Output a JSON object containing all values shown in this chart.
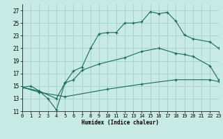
{
  "bg_color": "#c8eae4",
  "grid_color": "#a8d4cc",
  "line_color": "#1a6b5a",
  "xlim": [
    0,
    23
  ],
  "ylim": [
    11,
    28
  ],
  "xticks": [
    0,
    1,
    2,
    3,
    4,
    5,
    6,
    7,
    8,
    9,
    10,
    11,
    12,
    13,
    14,
    15,
    16,
    17,
    18,
    19,
    20,
    21,
    22,
    23
  ],
  "yticks": [
    11,
    13,
    15,
    17,
    19,
    21,
    23,
    25,
    27
  ],
  "xlabel": "Humidex (Indice chaleur)",
  "line1_x": [
    0,
    1,
    2,
    3,
    4,
    5,
    6,
    7,
    8,
    9,
    10,
    11,
    12,
    13,
    14,
    15,
    16,
    17,
    18,
    19,
    20,
    22,
    23
  ],
  "line1_y": [
    14.8,
    15.0,
    14.2,
    13.0,
    11.2,
    15.5,
    17.4,
    18.0,
    21.0,
    23.3,
    23.5,
    23.5,
    25.0,
    25.0,
    25.2,
    26.8,
    26.5,
    26.7,
    25.3,
    23.1,
    22.5,
    22.0,
    21.0
  ],
  "line2_x": [
    0,
    2,
    4,
    5,
    6,
    7,
    9,
    12,
    14,
    16,
    18,
    19,
    20,
    22,
    23
  ],
  "line2_y": [
    14.8,
    14.2,
    13.0,
    15.5,
    16.0,
    17.5,
    18.5,
    19.5,
    20.5,
    21.0,
    20.2,
    20.0,
    19.7,
    18.2,
    16.0
  ],
  "line3_x": [
    0,
    2,
    5,
    10,
    14,
    18,
    22,
    23
  ],
  "line3_y": [
    14.8,
    14.0,
    13.3,
    14.5,
    15.3,
    16.0,
    16.0,
    15.7
  ]
}
